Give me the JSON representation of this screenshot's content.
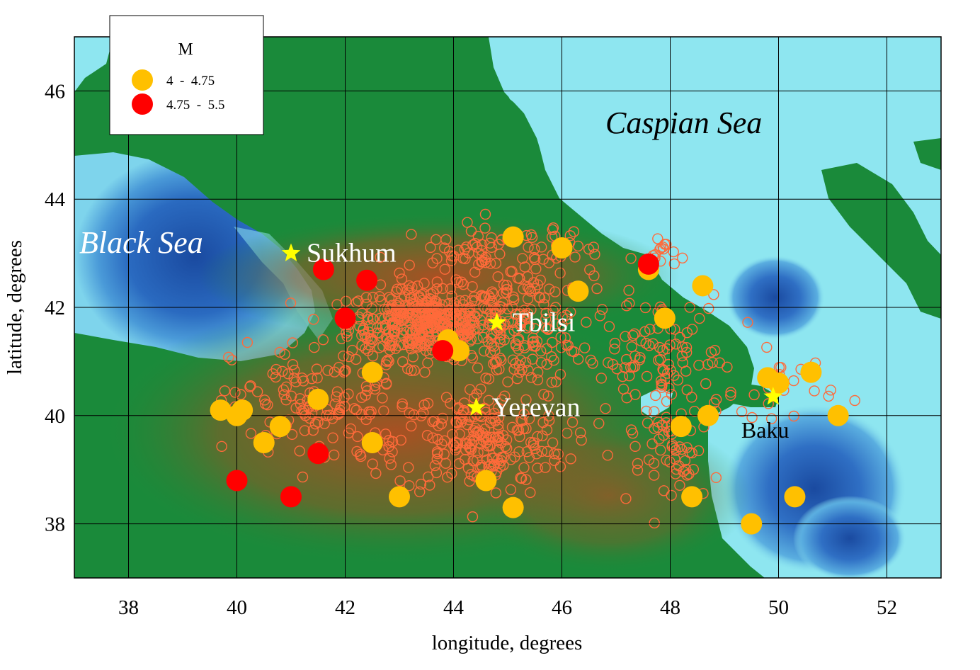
{
  "axes": {
    "xlabel": "longitude, degrees",
    "ylabel": "latitude, degrees",
    "xlim": [
      37,
      53
    ],
    "ylim": [
      37,
      47
    ],
    "xticks": [
      "38",
      "40",
      "42",
      "44",
      "46",
      "48",
      "50",
      "52"
    ],
    "yticks": [
      "38",
      "40",
      "42",
      "44",
      "46"
    ],
    "xtick_values": [
      38,
      40,
      42,
      44,
      46,
      48,
      50,
      52
    ],
    "ytick_values": [
      38,
      40,
      42,
      44,
      46
    ]
  },
  "legend": {
    "title": "M",
    "items": [
      {
        "label": "4  -  4.75",
        "color": "#ffc000"
      },
      {
        "label": "4.75  -  5.5",
        "color": "#ff0000"
      }
    ]
  },
  "labels": {
    "black_sea": "Black Sea",
    "caspian_sea": "Caspian Sea"
  },
  "cities": [
    {
      "name": "Sukhum",
      "lon": 41.0,
      "lat": 43.0,
      "label_color": "#ffffff"
    },
    {
      "name": "Tbilsi",
      "lon": 44.8,
      "lat": 41.72,
      "label_color": "#ffffff"
    },
    {
      "name": "Yerevan",
      "lon": 44.42,
      "lat": 40.15,
      "label_color": "#ffffff"
    },
    {
      "name": "Baku",
      "lon": 49.9,
      "lat": 40.35,
      "label_color": "#000000"
    }
  ],
  "colors": {
    "land_low": "#1a8a3a",
    "land_high": "#a84a20",
    "sea_shallow": "#8ee6f0",
    "sea_deep": "#1a4aa0",
    "small_events": "#ff6a3a",
    "star": "#ffff00"
  },
  "chart_data": {
    "type": "scatter",
    "title": "",
    "xlabel": "longitude, degrees",
    "ylabel": "latitude, degrees",
    "xlim": [
      37,
      53
    ],
    "ylim": [
      37,
      47
    ],
    "series": [
      {
        "name": "4  -  4.75",
        "color": "#ffc000",
        "points": [
          [
            39.7,
            40.1
          ],
          [
            40.0,
            40.0
          ],
          [
            40.1,
            40.1
          ],
          [
            40.5,
            39.5
          ],
          [
            40.8,
            39.8
          ],
          [
            41.5,
            40.3
          ],
          [
            42.5,
            40.8
          ],
          [
            42.5,
            39.5
          ],
          [
            43.0,
            38.5
          ],
          [
            43.9,
            41.4
          ],
          [
            44.1,
            41.2
          ],
          [
            44.6,
            38.8
          ],
          [
            45.1,
            38.3
          ],
          [
            45.1,
            43.3
          ],
          [
            46.0,
            43.1
          ],
          [
            46.3,
            42.3
          ],
          [
            47.6,
            42.7
          ],
          [
            47.9,
            41.8
          ],
          [
            48.2,
            39.8
          ],
          [
            48.4,
            38.5
          ],
          [
            48.6,
            42.4
          ],
          [
            48.7,
            40.0
          ],
          [
            49.5,
            38.0
          ],
          [
            49.8,
            40.7
          ],
          [
            50.0,
            40.6
          ],
          [
            50.3,
            38.5
          ],
          [
            50.6,
            40.8
          ],
          [
            51.1,
            40.0
          ]
        ]
      },
      {
        "name": "4.75  -  5.5",
        "color": "#ff0000",
        "points": [
          [
            40.0,
            38.8
          ],
          [
            41.0,
            38.5
          ],
          [
            41.5,
            39.3
          ],
          [
            41.6,
            42.7
          ],
          [
            42.0,
            41.8
          ],
          [
            42.4,
            42.5
          ],
          [
            43.8,
            41.2
          ],
          [
            47.6,
            42.8
          ]
        ]
      }
    ]
  }
}
